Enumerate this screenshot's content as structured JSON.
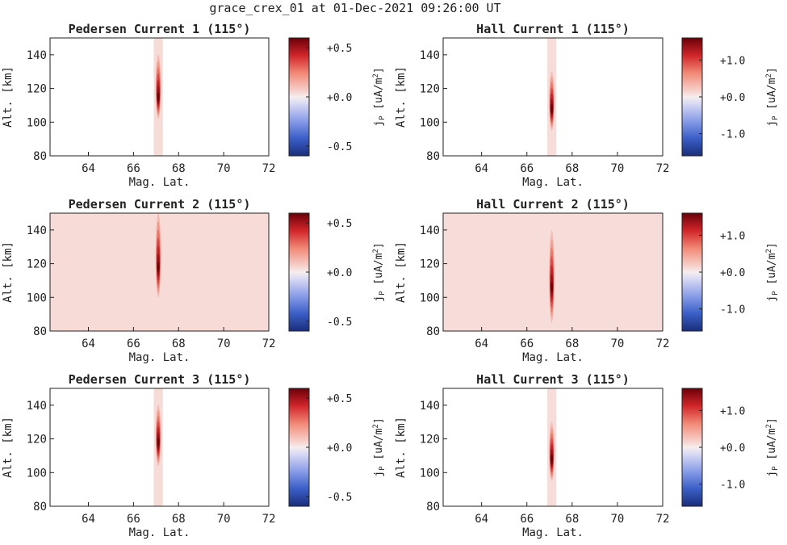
{
  "figure_title": "grace_crex_01 at 01-Dec-2021 09:26:00 UT",
  "chart_data": [
    {
      "type": "heatmap",
      "title": "Pedersen Current 1 (115°)",
      "xlabel": "Mag. Lat.",
      "ylabel": "Alt. [km]",
      "xlim": [
        62.3,
        72.0
      ],
      "ylim": [
        80,
        150
      ],
      "xticks": [
        "64",
        "66",
        "68",
        "70",
        "72"
      ],
      "yticks": [
        "80",
        "100",
        "120",
        "140"
      ],
      "colorbar": {
        "label_main": "j",
        "label_sub": "P",
        "label_unit": "[uA/m",
        "label_pow": "2",
        "label_end": "]",
        "ticks": [
          "+0.5",
          "+0.0",
          "-0.5"
        ],
        "tick_values": [
          0.5,
          0.0,
          -0.5
        ],
        "range": [
          -0.6,
          0.6
        ]
      },
      "background": "none",
      "band": {
        "lat_min": 66.9,
        "lat_max": 67.3,
        "value": 0.04
      },
      "peak": {
        "lat": 67.1,
        "alt": 115,
        "value": 0.6,
        "alt_low": 102,
        "alt_high": 140
      }
    },
    {
      "type": "heatmap",
      "title": "Hall Current 1 (115°)",
      "xlabel": "Mag. Lat.",
      "ylabel": "Alt. [km]",
      "xlim": [
        62.3,
        72.0
      ],
      "ylim": [
        80,
        150
      ],
      "xticks": [
        "64",
        "66",
        "68",
        "70",
        "72"
      ],
      "yticks": [
        "80",
        "100",
        "120",
        "140"
      ],
      "colorbar": {
        "label_main": "j",
        "label_sub": "P",
        "label_unit": "[uA/m",
        "label_pow": "2",
        "label_end": "]",
        "ticks": [
          "+1.0",
          "+0.0",
          "-1.0"
        ],
        "tick_values": [
          1.0,
          0.0,
          -1.0
        ],
        "range": [
          -1.6,
          1.6
        ]
      },
      "background": "none",
      "band": {
        "lat_min": 66.9,
        "lat_max": 67.3,
        "value": 0.1
      },
      "peak": {
        "lat": 67.1,
        "alt": 108,
        "value": 1.6,
        "alt_low": 95,
        "alt_high": 130
      }
    },
    {
      "type": "heatmap",
      "title": "Pedersen Current 2 (115°)",
      "xlabel": "Mag. Lat.",
      "ylabel": "Alt. [km]",
      "xlim": [
        62.3,
        72.0
      ],
      "ylim": [
        80,
        150
      ],
      "xticks": [
        "64",
        "66",
        "68",
        "70",
        "72"
      ],
      "yticks": [
        "80",
        "100",
        "120",
        "140"
      ],
      "colorbar": {
        "label_main": "j",
        "label_sub": "P",
        "label_unit": "[uA/m",
        "label_pow": "2",
        "label_end": "]",
        "ticks": [
          "+0.5",
          "+0.0",
          "-0.5"
        ],
        "tick_values": [
          0.5,
          0.0,
          -0.5
        ],
        "range": [
          -0.6,
          0.6
        ]
      },
      "background": "full",
      "band": {
        "lat_min": 62.3,
        "lat_max": 72.0,
        "value": 0.04
      },
      "peak": {
        "lat": 67.1,
        "alt": 118,
        "value": 0.6,
        "alt_low": 100,
        "alt_high": 150
      }
    },
    {
      "type": "heatmap",
      "title": "Hall Current 2 (115°)",
      "xlabel": "Mag. Lat.",
      "ylabel": "Alt. [km]",
      "xlim": [
        62.3,
        72.0
      ],
      "ylim": [
        80,
        150
      ],
      "xticks": [
        "64",
        "66",
        "68",
        "70",
        "72"
      ],
      "yticks": [
        "80",
        "100",
        "120",
        "140"
      ],
      "colorbar": {
        "label_main": "j",
        "label_sub": "P",
        "label_unit": "[uA/m",
        "label_pow": "2",
        "label_end": "]",
        "ticks": [
          "+1.0",
          "+0.0",
          "-1.0"
        ],
        "tick_values": [
          1.0,
          0.0,
          -1.0
        ],
        "range": [
          -1.6,
          1.6
        ]
      },
      "background": "full",
      "band": {
        "lat_min": 62.3,
        "lat_max": 72.0,
        "value": 0.1
      },
      "peak": {
        "lat": 67.1,
        "alt": 106,
        "value": 1.6,
        "alt_low": 85,
        "alt_high": 140
      }
    },
    {
      "type": "heatmap",
      "title": "Pedersen Current 3 (115°)",
      "xlabel": "Mag. Lat.",
      "ylabel": "Alt. [km]",
      "xlim": [
        62.3,
        72.0
      ],
      "ylim": [
        80,
        150
      ],
      "xticks": [
        "64",
        "66",
        "68",
        "70",
        "72"
      ],
      "yticks": [
        "80",
        "100",
        "120",
        "140"
      ],
      "colorbar": {
        "label_main": "j",
        "label_sub": "P",
        "label_unit": "[uA/m",
        "label_pow": "2",
        "label_end": "]",
        "ticks": [
          "+0.5",
          "+0.0",
          "-0.5"
        ],
        "tick_values": [
          0.5,
          0.0,
          -0.5
        ],
        "range": [
          -0.6,
          0.6
        ]
      },
      "background": "none",
      "band": {
        "lat_min": 66.9,
        "lat_max": 67.3,
        "value": 0.04
      },
      "peak": {
        "lat": 67.1,
        "alt": 118,
        "value": 0.6,
        "alt_low": 104,
        "alt_high": 140
      }
    },
    {
      "type": "heatmap",
      "title": "Hall Current 3 (115°)",
      "xlabel": "Mag. Lat.",
      "ylabel": "Alt. [km]",
      "xlim": [
        62.3,
        72.0
      ],
      "ylim": [
        80,
        150
      ],
      "xticks": [
        "64",
        "66",
        "68",
        "70",
        "72"
      ],
      "yticks": [
        "80",
        "100",
        "120",
        "140"
      ],
      "colorbar": {
        "label_main": "j",
        "label_sub": "P",
        "label_unit": "[uA/m",
        "label_pow": "2",
        "label_end": "]",
        "ticks": [
          "+1.0",
          "+0.0",
          "-1.0"
        ],
        "tick_values": [
          1.0,
          0.0,
          -1.0
        ],
        "range": [
          -1.6,
          1.6
        ]
      },
      "background": "none",
      "band": {
        "lat_min": 66.9,
        "lat_max": 67.3,
        "value": 0.1
      },
      "peak": {
        "lat": 67.1,
        "alt": 108,
        "value": 1.6,
        "alt_low": 95,
        "alt_high": 130
      }
    }
  ]
}
